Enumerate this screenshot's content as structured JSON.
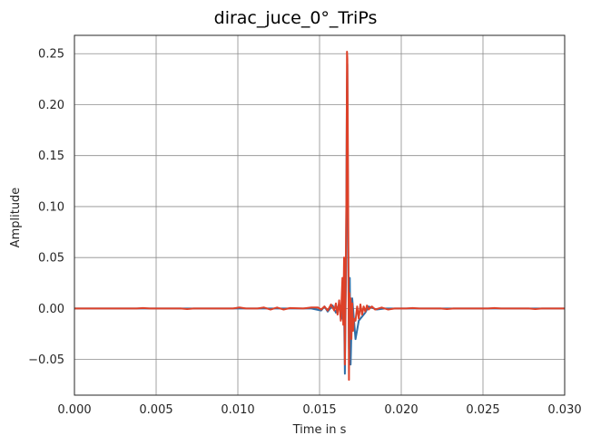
{
  "chart_data": {
    "type": "line",
    "title": "dirac_juce_0°_TriPs",
    "xlabel": "Time in s",
    "ylabel": "Amplitude",
    "xlim": [
      0,
      0.03
    ],
    "ylim": [
      -0.085,
      0.268
    ],
    "grid": true,
    "x_ticks": [
      0,
      0.005,
      0.01,
      0.015,
      0.02,
      0.025,
      0.03
    ],
    "x_tick_labels": [
      "0.000",
      "0.005",
      "0.010",
      "0.015",
      "0.020",
      "0.025",
      "0.030"
    ],
    "y_ticks": [
      -0.05,
      0,
      0.05,
      0.1,
      0.15,
      0.2,
      0.25
    ],
    "y_tick_labels": [
      "−0.05",
      "0.00",
      "0.05",
      "0.10",
      "0.15",
      "0.20",
      "0.25"
    ],
    "colors": {
      "grid": "#8c8c8c",
      "frame": "#262626",
      "series_blue": "#2f6fa8",
      "series_red": "#dd4129"
    },
    "series": [
      {
        "color": "#2f6fa8",
        "x": [
          0,
          0.0145,
          0.0151,
          0.0153,
          0.0155,
          0.0158,
          0.016,
          0.0162,
          0.0164,
          0.01648,
          0.01655,
          0.01662,
          0.01667,
          0.0167,
          0.01675,
          0.0168,
          0.01685,
          0.0169,
          0.017,
          0.0172,
          0.0174,
          0.0176,
          0.0178,
          0.018,
          0.0185,
          0.019,
          0.03
        ],
        "y": [
          0,
          0,
          -0.002,
          0.002,
          -0.003,
          0.003,
          -0.004,
          0.004,
          -0.01,
          0.025,
          -0.064,
          0.04,
          0.21,
          0.24,
          0.06,
          -0.04,
          0.03,
          -0.055,
          0.01,
          -0.03,
          -0.012,
          -0.008,
          -0.004,
          0.002,
          -0.001,
          0,
          0
        ]
      },
      {
        "color": "#dd4129",
        "x": [
          0,
          0.0038,
          0.0042,
          0.0046,
          0.0065,
          0.0069,
          0.0073,
          0.0097,
          0.0101,
          0.0105,
          0.0112,
          0.0116,
          0.012,
          0.0124,
          0.0128,
          0.0132,
          0.014,
          0.0145,
          0.0149,
          0.0151,
          0.0153,
          0.0155,
          0.0157,
          0.0159,
          0.016,
          0.0161,
          0.0162,
          0.0163,
          0.0164,
          0.01645,
          0.0165,
          0.01655,
          0.0166,
          0.01665,
          0.01668,
          0.0167,
          0.01673,
          0.01677,
          0.0168,
          0.01683,
          0.01687,
          0.0169,
          0.01695,
          0.017,
          0.01705,
          0.0171,
          0.0172,
          0.0173,
          0.0174,
          0.0175,
          0.0176,
          0.0177,
          0.0178,
          0.0179,
          0.018,
          0.0182,
          0.0184,
          0.0188,
          0.0192,
          0.0196,
          0.0203,
          0.0207,
          0.0211,
          0.0224,
          0.0228,
          0.0232,
          0.0253,
          0.0257,
          0.0261,
          0.0278,
          0.0282,
          0.0286,
          0.03
        ],
        "y": [
          0,
          0,
          0.0005,
          0,
          0,
          -0.0005,
          0,
          0,
          0.001,
          0,
          0,
          0.001,
          -0.001,
          0.001,
          -0.001,
          0.0005,
          0,
          0.001,
          0.001,
          -0.001,
          0.002,
          -0.002,
          0.004,
          -0.002,
          0.005,
          -0.006,
          0.008,
          -0.012,
          0.03,
          -0.016,
          0.05,
          -0.055,
          0.03,
          0.12,
          0.252,
          0.245,
          0.17,
          0.04,
          -0.07,
          0.015,
          -0.02,
          0.01,
          -0.03,
          0.005,
          -0.022,
          -0.01,
          -0.012,
          0.002,
          -0.01,
          0.004,
          -0.006,
          0.002,
          -0.003,
          0.003,
          -0.001,
          0.002,
          -0.001,
          0.001,
          -0.001,
          0,
          0,
          0.0005,
          0,
          0,
          -0.0005,
          0,
          0,
          0.0005,
          0,
          0,
          -0.0005,
          0,
          0
        ]
      }
    ]
  }
}
